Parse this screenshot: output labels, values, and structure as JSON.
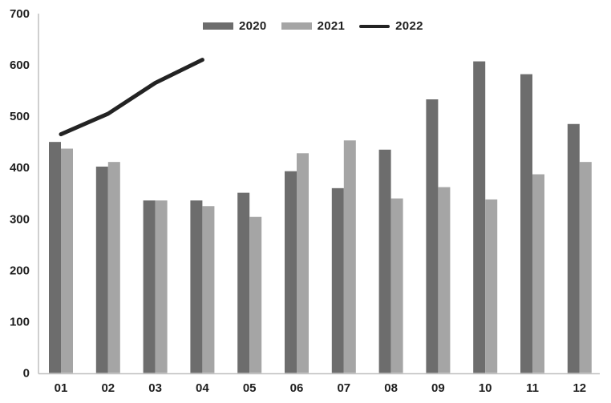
{
  "chart_data": {
    "type": "bar",
    "title": "",
    "xlabel": "",
    "ylabel": "",
    "categories": [
      "01",
      "02",
      "03",
      "04",
      "05",
      "06",
      "07",
      "08",
      "09",
      "10",
      "11",
      "12"
    ],
    "series": [
      {
        "name": "2020",
        "type": "bar",
        "color": "#6d6d6d",
        "values": [
          450,
          402,
          336,
          336,
          351,
          393,
          360,
          435,
          533,
          607,
          582,
          485
        ]
      },
      {
        "name": "2021",
        "type": "bar",
        "color": "#a5a5a5",
        "values": [
          437,
          411,
          336,
          325,
          304,
          428,
          453,
          340,
          362,
          338,
          387,
          411
        ]
      },
      {
        "name": "2022",
        "type": "line",
        "color": "#232323",
        "values": [
          465,
          505,
          565,
          610,
          null,
          null,
          null,
          null,
          null,
          null,
          null,
          null
        ]
      }
    ],
    "ylim": [
      0,
      700
    ],
    "yticks": [
      0,
      100,
      200,
      300,
      400,
      500,
      600,
      700
    ],
    "grid": false,
    "legend_position": "top",
    "axis_color": "#bfbfbf"
  }
}
